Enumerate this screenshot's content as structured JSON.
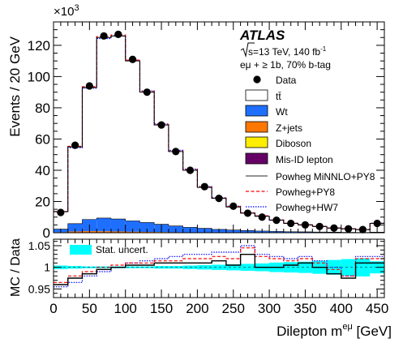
{
  "chart_data": [
    {
      "type": "bar",
      "panel": "main",
      "scale_label": "×10",
      "scale_exponent": "3",
      "ylabel": "Events / 20 GeV",
      "ylim": [
        0,
        135
      ],
      "yticks": [
        0,
        20,
        40,
        60,
        80,
        100,
        120
      ],
      "xlim": [
        0,
        460
      ],
      "bin_width": 20,
      "bin_edges": [
        0,
        20,
        40,
        60,
        80,
        100,
        120,
        140,
        160,
        180,
        200,
        220,
        240,
        260,
        280,
        300,
        320,
        340,
        360,
        380,
        400,
        420,
        440,
        460
      ],
      "annotations": {
        "experiment": "ATLAS",
        "energy_prefix": "s=13 TeV, 140 fb",
        "energy_sup": "-1",
        "selection": "eμ + ≥ 1b, 70% b-tag"
      },
      "legend": [
        {
          "label": "Data",
          "kind": "marker",
          "color": "#000000"
        },
        {
          "label": "tt̄",
          "kind": "box",
          "color": "#ffffff"
        },
        {
          "label": "Wt",
          "kind": "box",
          "color": "#1f6fff"
        },
        {
          "label": "Z+jets",
          "kind": "box",
          "color": "#ff7700"
        },
        {
          "label": "Diboson",
          "kind": "box",
          "color": "#ffee00"
        },
        {
          "label": "Mis-ID lepton",
          "kind": "box",
          "color": "#660066"
        },
        {
          "label": "Powheg MiNNLO+PY8",
          "kind": "line",
          "color": "#555555"
        },
        {
          "label": "Powheg+PY8",
          "kind": "dashed",
          "color": "#ff0000"
        },
        {
          "label": "Powheg+HW7",
          "kind": "dotted",
          "color": "#0000ff"
        }
      ],
      "series": [
        {
          "name": "Data",
          "values": [
            13,
            56,
            94,
            126,
            127,
            111,
            90,
            69,
            52,
            40,
            29.5,
            22,
            17,
            12.5,
            10,
            8,
            6,
            5,
            4,
            3,
            2.5,
            2,
            6
          ]
        },
        {
          "name": "Powheg MiNNLO+PY8",
          "values": [
            13.5,
            55,
            93,
            125,
            126,
            110,
            90,
            69,
            52,
            40,
            29,
            22,
            16.5,
            12.5,
            10.5,
            8,
            6,
            5,
            4,
            3,
            2.5,
            2,
            6
          ]
        },
        {
          "name": "Wt",
          "values": [
            2,
            5,
            7.5,
            8.5,
            8,
            7,
            6,
            5,
            4,
            3.2,
            2.6,
            2,
            1.6,
            1.3,
            1,
            0.8,
            0.6,
            0.5,
            0.4,
            0.3,
            0.2,
            0.15,
            0.3
          ]
        },
        {
          "name": "Z+jets",
          "values": [
            0.3,
            0.8,
            1,
            0.9,
            0.8,
            0.6,
            0.5,
            0.4,
            0.3,
            0.2,
            0.2,
            0.1,
            0.1,
            0.1,
            0.1,
            0.05,
            0.05,
            0.05,
            0.05,
            0.05,
            0.05,
            0.05,
            0.05
          ]
        }
      ]
    },
    {
      "type": "line",
      "panel": "ratio",
      "ylabel": "MC / Data",
      "xlabel": "Dilepton m",
      "xlabel_sup": "eμ",
      "xlabel_unit": " [GeV]",
      "ylim": [
        0.93,
        1.065
      ],
      "yticks": [
        0.95,
        1,
        1.05
      ],
      "ytick_labels": [
        "0.95",
        "1",
        "1.05"
      ],
      "xticks": [
        0,
        50,
        100,
        150,
        200,
        250,
        300,
        350,
        400,
        450
      ],
      "uncertainty_label": "Stat. uncert.",
      "uncertainty_color": "#00ffff",
      "uncertainty_halfwidth": [
        0.004,
        0.003,
        0.002,
        0.002,
        0.002,
        0.002,
        0.002,
        0.003,
        0.003,
        0.004,
        0.005,
        0.006,
        0.007,
        0.008,
        0.009,
        0.011,
        0.012,
        0.013,
        0.015,
        0.017,
        0.019,
        0.021,
        0.014
      ],
      "series": [
        {
          "name": "Powheg MiNNLO+PY8",
          "color": "#000000",
          "style": "solid",
          "values": [
            0.96,
            0.975,
            0.985,
            0.995,
            1.0,
            1.005,
            1.005,
            1.01,
            1.01,
            1.01,
            1.01,
            1.015,
            1.005,
            1.03,
            1.0,
            1.0,
            1.005,
            1.01,
            1.0,
            0.985,
            0.975,
            1.01,
            1.01
          ]
        },
        {
          "name": "Powheg+PY8",
          "color": "#ff0000",
          "style": "dashed",
          "values": [
            0.965,
            0.98,
            0.99,
            1.0,
            1.005,
            1.01,
            1.01,
            1.015,
            1.015,
            1.02,
            1.02,
            1.025,
            1.02,
            1.045,
            1.025,
            1.02,
            1.015,
            1.02,
            1.01,
            0.995,
            0.98,
            1.02,
            1.02
          ]
        },
        {
          "name": "Powheg+HW7",
          "color": "#0000ff",
          "style": "dotted",
          "values": [
            0.955,
            0.965,
            0.98,
            0.99,
            1.0,
            1.01,
            1.015,
            1.02,
            1.025,
            1.03,
            1.03,
            1.035,
            1.035,
            1.05,
            1.03,
            1.025,
            1.02,
            1.025,
            1.015,
            1.0,
            0.98,
            1.025,
            1.025
          ]
        }
      ]
    }
  ]
}
